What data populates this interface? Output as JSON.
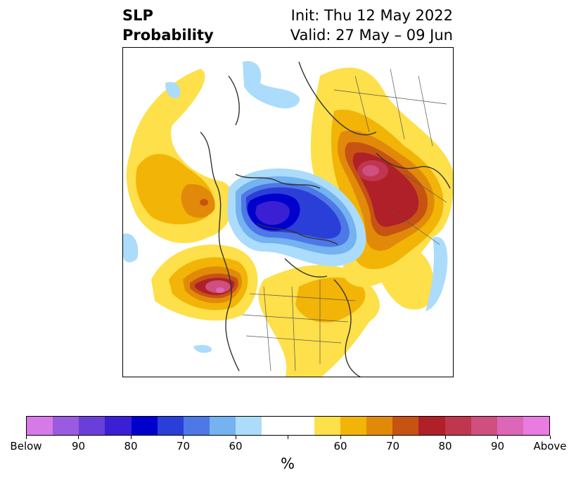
{
  "title": {
    "left_line1": "SLP",
    "left_line2": "Probability",
    "right_line1": "Init: Thu 12 May 2022",
    "right_line2": "Valid: 27 May – 09 Jun"
  },
  "colorbar": {
    "colors": [
      "#d67ae8",
      "#9a5be0",
      "#6a3fd9",
      "#3a1fd4",
      "#0000cc",
      "#2a3fd8",
      "#4d78e6",
      "#74b2f0",
      "#abdcfb",
      "#ffffff",
      "#ffffff",
      "#fde04a",
      "#f2b406",
      "#e18a0a",
      "#c75313",
      "#b02028",
      "#c0364f",
      "#cf4f7f",
      "#de66b7",
      "#ea7be0"
    ],
    "tick_labels": [
      "Below",
      "90",
      "80",
      "70",
      "60",
      "",
      "60",
      "70",
      "80",
      "90",
      "Above"
    ],
    "unit": "%"
  },
  "legend_colors": {
    "below_strong": "#0000cc",
    "above_strong": "#b02028",
    "neutral": "#ffffff"
  }
}
